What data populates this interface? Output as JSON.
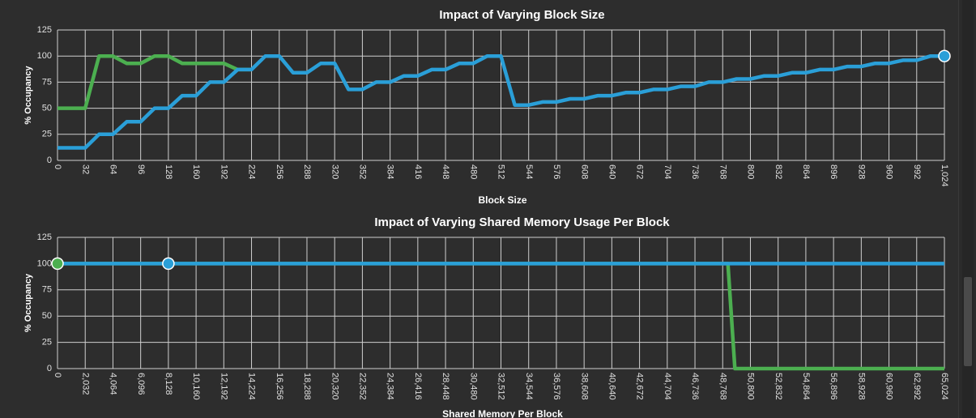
{
  "chart_data": [
    {
      "type": "line",
      "title": "Impact of Varying Block Size",
      "xlabel": "Block Size",
      "ylabel": "% Occupancy",
      "xlim": [
        0,
        1024
      ],
      "ylim": [
        0,
        125
      ],
      "grid": true,
      "x_ticks": [
        "0",
        "32",
        "64",
        "96",
        "128",
        "160",
        "192",
        "224",
        "256",
        "288",
        "320",
        "352",
        "384",
        "416",
        "448",
        "480",
        "512",
        "544",
        "576",
        "608",
        "640",
        "672",
        "704",
        "736",
        "768",
        "800",
        "832",
        "864",
        "896",
        "928",
        "960",
        "992",
        "1,024"
      ],
      "y_ticks": [
        "0",
        "25",
        "50",
        "75",
        "100",
        "125"
      ],
      "series": [
        {
          "color": "#4caf50",
          "x": [
            0,
            32,
            48,
            64,
            80,
            96,
            112,
            128,
            144,
            160,
            176,
            192,
            208,
            224
          ],
          "y": [
            50,
            50,
            100,
            100,
            93,
            93,
            100,
            100,
            93,
            93,
            93,
            93,
            87,
            87
          ]
        },
        {
          "color": "#2a9fd8",
          "x": [
            0,
            32,
            48,
            64,
            80,
            96,
            112,
            128,
            144,
            160,
            176,
            192,
            208,
            224,
            240,
            256,
            272,
            288,
            304,
            320,
            336,
            352,
            368,
            384,
            400,
            416,
            432,
            448,
            464,
            480,
            496,
            512,
            528,
            544,
            560,
            576,
            592,
            608,
            624,
            640,
            656,
            672,
            688,
            704,
            720,
            736,
            752,
            768,
            784,
            800,
            816,
            832,
            848,
            864,
            880,
            896,
            912,
            928,
            944,
            960,
            976,
            992,
            1008,
            1024
          ],
          "y": [
            12,
            12,
            25,
            25,
            37,
            37,
            50,
            50,
            62,
            62,
            75,
            75,
            87,
            87,
            100,
            100,
            84,
            84,
            93,
            93,
            68,
            68,
            75,
            75,
            81,
            81,
            87,
            87,
            93,
            93,
            100,
            100,
            53,
            53,
            56,
            56,
            59,
            59,
            62,
            62,
            65,
            65,
            68,
            68,
            71,
            71,
            75,
            75,
            78,
            78,
            81,
            81,
            84,
            84,
            87,
            87,
            90,
            90,
            93,
            93,
            96,
            96,
            100,
            100
          ]
        }
      ],
      "markers": [
        {
          "series": 1,
          "x": 1024,
          "y": 100,
          "color": "#2a9fd8"
        }
      ]
    },
    {
      "type": "line",
      "title": "Impact of Varying Shared Memory Usage Per Block",
      "xlabel": "Shared Memory Per Block",
      "ylabel": "% Occupancy",
      "xlim": [
        0,
        65024
      ],
      "ylim": [
        0,
        125
      ],
      "grid": true,
      "x_ticks": [
        "0",
        "2,032",
        "4,064",
        "6,096",
        "8,128",
        "10,160",
        "12,192",
        "14,224",
        "16,256",
        "18,288",
        "20,320",
        "22,352",
        "24,384",
        "26,416",
        "28,448",
        "30,480",
        "32,512",
        "34,544",
        "36,576",
        "38,608",
        "40,640",
        "42,672",
        "44,704",
        "46,736",
        "48,768",
        "50,800",
        "52,832",
        "54,864",
        "56,896",
        "58,928",
        "60,960",
        "62,992",
        "65,024"
      ],
      "y_ticks": [
        "0",
        "25",
        "50",
        "75",
        "100",
        "125"
      ],
      "series": [
        {
          "color": "#4caf50",
          "x": [
            0,
            49152,
            49664,
            65024
          ],
          "y": [
            100,
            100,
            0,
            0
          ]
        },
        {
          "color": "#2a9fd8",
          "x": [
            0,
            65024
          ],
          "y": [
            100,
            100
          ]
        }
      ],
      "markers": [
        {
          "series": 0,
          "x": 0,
          "y": 100,
          "color": "#4caf50"
        },
        {
          "series": 1,
          "x": 8128,
          "y": 100,
          "color": "#2a9fd8"
        }
      ]
    }
  ]
}
